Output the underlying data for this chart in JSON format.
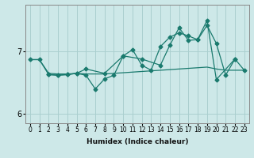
{
  "xlabel": "Humidex (Indice chaleur)",
  "x": [
    0,
    1,
    2,
    3,
    4,
    5,
    6,
    7,
    8,
    9,
    10,
    11,
    12,
    13,
    14,
    15,
    16,
    17,
    18,
    19,
    20,
    21,
    22,
    23
  ],
  "line1_y": [
    6.87,
    6.87,
    6.65,
    6.64,
    6.64,
    6.65,
    6.64,
    6.64,
    6.64,
    6.65,
    6.66,
    6.67,
    6.68,
    6.69,
    6.7,
    6.71,
    6.72,
    6.73,
    6.74,
    6.75,
    6.72,
    6.7,
    6.7,
    6.7
  ],
  "line2_x": [
    0,
    1,
    2,
    3,
    4,
    5,
    6,
    7,
    8,
    9,
    10,
    11,
    12,
    13,
    14,
    15,
    16,
    17,
    18,
    19,
    20,
    21,
    22,
    23
  ],
  "line2_y": [
    6.87,
    6.87,
    6.63,
    6.62,
    6.63,
    6.65,
    6.62,
    6.4,
    6.56,
    6.62,
    6.93,
    7.03,
    6.78,
    6.7,
    7.08,
    7.23,
    7.3,
    7.25,
    7.19,
    7.42,
    7.13,
    6.62,
    6.88,
    6.7
  ],
  "line3_x": [
    2,
    3,
    4,
    5,
    6,
    8,
    10,
    12,
    14,
    15,
    16,
    17,
    18,
    19,
    20,
    22
  ],
  "line3_y": [
    6.63,
    6.62,
    6.63,
    6.65,
    6.72,
    6.65,
    6.93,
    6.88,
    6.78,
    7.1,
    7.38,
    7.18,
    7.19,
    7.5,
    6.55,
    6.88
  ],
  "bg_color": "#cde8e8",
  "grid_color": "#aacfcf",
  "line_color": "#1a7a6e",
  "ylim": [
    5.85,
    7.75
  ],
  "yticks": [
    6,
    7
  ],
  "xticks": [
    0,
    1,
    2,
    3,
    4,
    5,
    6,
    7,
    8,
    9,
    10,
    11,
    12,
    13,
    14,
    15,
    16,
    17,
    18,
    19,
    20,
    21,
    22,
    23
  ]
}
